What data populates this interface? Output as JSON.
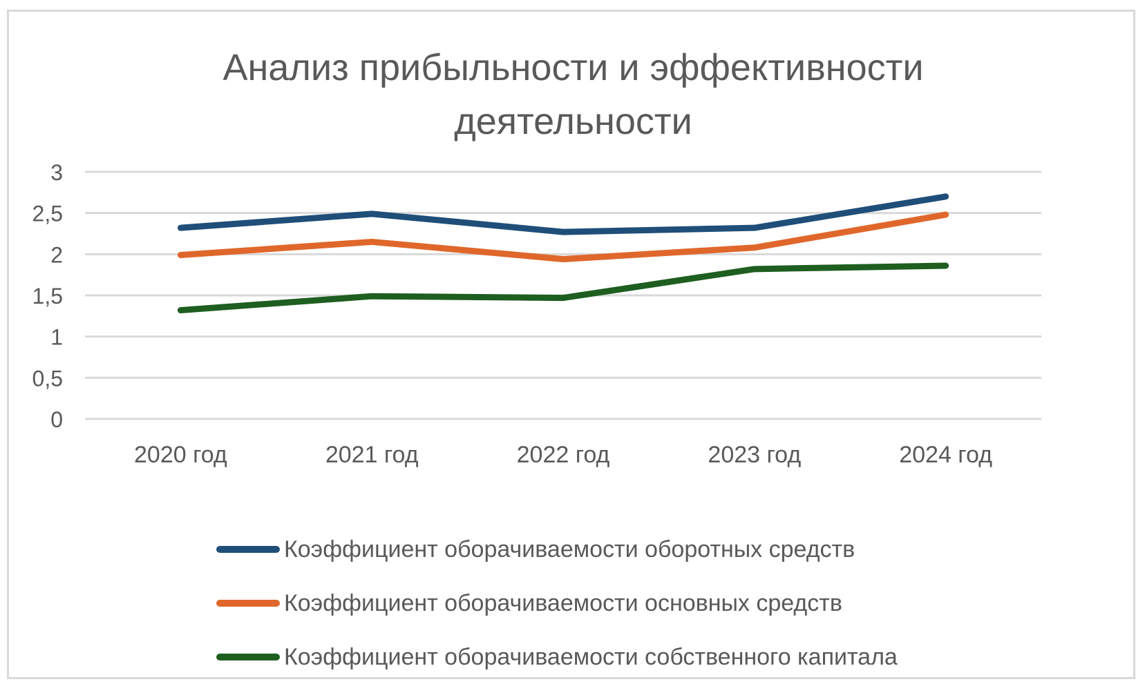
{
  "chart_data": {
    "type": "line",
    "title": "Анализ прибыльности и эффективности деятельности",
    "title_lines": [
      "Анализ прибыльности и эффективности",
      "деятельности"
    ],
    "categories": [
      "2020 год",
      "2021 год",
      "2022 год",
      "2023 год",
      "2024 год"
    ],
    "y_ticks": [
      "0",
      "0,5",
      "1",
      "1,5",
      "2",
      "2,5",
      "3"
    ],
    "ylim": [
      0,
      3
    ],
    "grid": true,
    "legend_position": "bottom",
    "series": [
      {
        "name": "Коэффициент оборачиваемости оборотных средств",
        "color": "#1f4e79",
        "values": [
          2.32,
          2.49,
          2.27,
          2.32,
          2.7
        ]
      },
      {
        "name": "Коэффициент оборачиваемости основных средств",
        "color": "#e0672b",
        "values": [
          1.99,
          2.15,
          1.94,
          2.08,
          2.48
        ]
      },
      {
        "name": "Коэффициент оборачиваемости собственного капитала",
        "color": "#1e5e20",
        "values": [
          1.32,
          1.49,
          1.47,
          1.82,
          1.86
        ]
      }
    ]
  }
}
